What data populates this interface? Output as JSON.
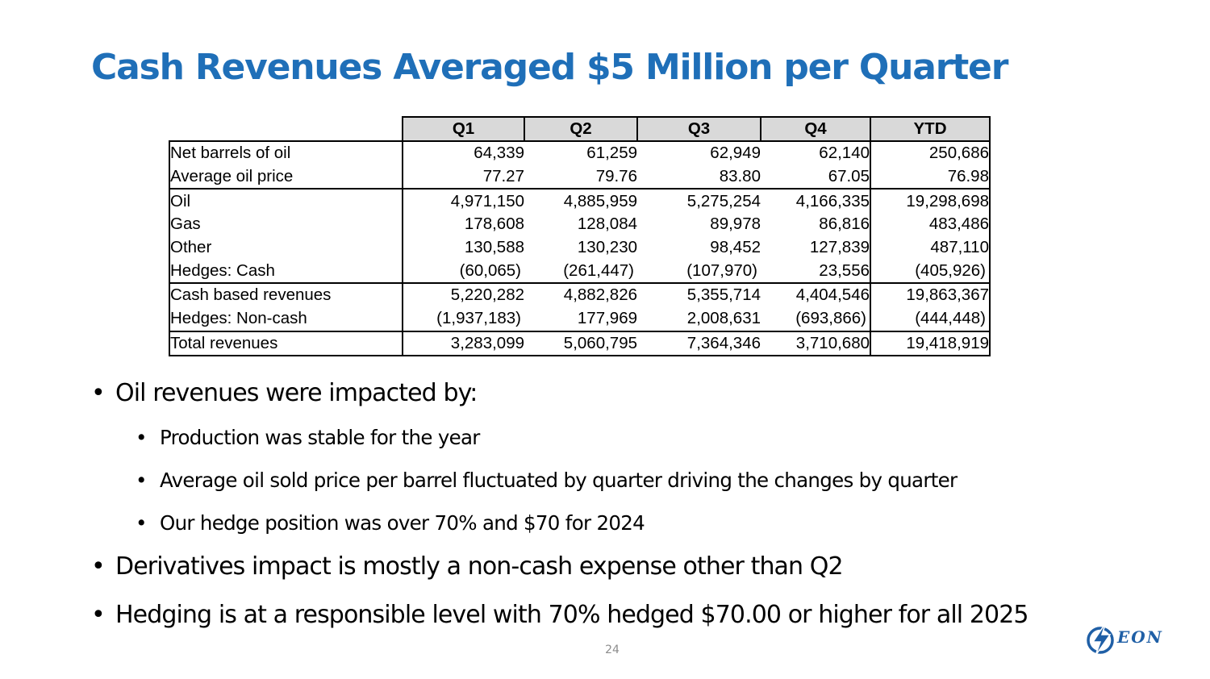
{
  "title": "Cash Revenues Averaged $5 Million per Quarter",
  "colors": {
    "title": "#1f6fb8",
    "header_bg": "#d9d9d9",
    "logo": "#1f5fa6",
    "page_num": "#8c8c8c"
  },
  "table": {
    "headers": [
      "Q1",
      "Q2",
      "Q3",
      "Q4",
      "YTD"
    ],
    "rows": [
      {
        "label": "Net barrels of oil",
        "values": [
          "64,339",
          "61,259",
          "62,949",
          "62,140",
          "250,686"
        ]
      },
      {
        "label": "Average oil price",
        "values": [
          "77.27",
          "79.76",
          "83.80",
          "67.05",
          "76.98"
        ]
      },
      {
        "label": "Oil",
        "values": [
          "4,971,150",
          "4,885,959",
          "5,275,254",
          "4,166,335",
          "19,298,698"
        ]
      },
      {
        "label": "Gas",
        "values": [
          "178,608",
          "128,084",
          "89,978",
          "86,816",
          "483,486"
        ]
      },
      {
        "label": "Other",
        "values": [
          "130,588",
          "130,230",
          "98,452",
          "127,839",
          "487,110"
        ]
      },
      {
        "label": "Hedges: Cash",
        "values": [
          "(60,065)",
          "(261,447)",
          "(107,970)",
          "23,556",
          "(405,926)"
        ]
      },
      {
        "label": "Cash based revenues",
        "values": [
          "5,220,282",
          "4,882,826",
          "5,355,714",
          "4,404,546",
          "19,863,367"
        ]
      },
      {
        "label": "Hedges:  Non-cash",
        "values": [
          "(1,937,183)",
          "177,969",
          "2,008,631",
          "(693,866)",
          "(444,448)"
        ]
      },
      {
        "label": "Total revenues",
        "values": [
          "3,283,099",
          "5,060,795",
          "7,364,346",
          "3,710,680",
          "19,418,919"
        ]
      }
    ]
  },
  "bullets": [
    {
      "level": 1,
      "text": "Oil revenues were impacted by:"
    },
    {
      "level": 2,
      "text": "Production was stable for the year"
    },
    {
      "level": 2,
      "text": "Average oil sold price per barrel fluctuated by quarter driving the changes by quarter"
    },
    {
      "level": 2,
      "text": "Our hedge position was over 70% and $70 for 2024"
    },
    {
      "level": 1,
      "text": "Derivatives impact is mostly a non-cash expense other than Q2"
    },
    {
      "level": 1,
      "text": "Hedging is at a responsible level with 70% hedged $70.00 or higher for all 2025"
    }
  ],
  "bullet_glyph": "•",
  "page_number": "24",
  "logo": {
    "text": "EON",
    "icon": "lightning-bolt-icon"
  }
}
